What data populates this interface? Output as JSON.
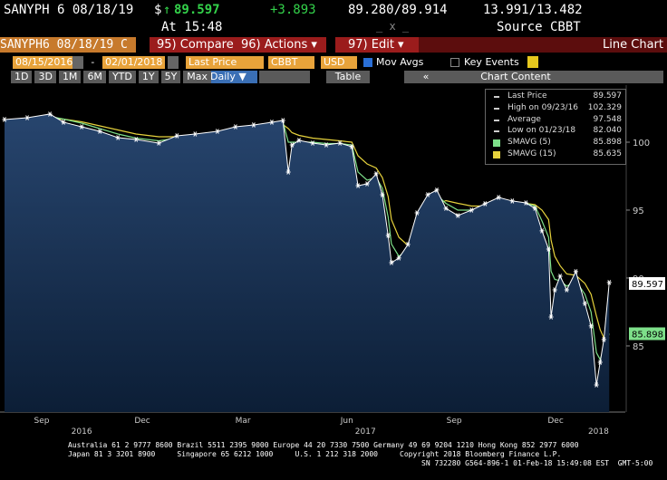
{
  "header": {
    "ticker": "SANYPH 6 08/18/19",
    "currency": "$",
    "arrow": "↑",
    "last": "89.597",
    "change": "+3.893",
    "bid_ask": "89.280/89.914",
    "yields": "13.991/13.482",
    "time": "At 15:48",
    "source": "Source CBBT",
    "window_controls": "_ x _"
  },
  "toolbar": {
    "security": "SANYPH6 08/18/19 C",
    "buttons": [
      "95) Compare",
      "96) Actions ▾",
      "97) Edit ▾"
    ],
    "chart_kind": "Line Chart"
  },
  "settings": {
    "start": "08/15/2016",
    "dash": "-",
    "end": "02/01/2018",
    "field": "Last Price",
    "source": "CBBT",
    "currency": "USD",
    "mov_avgs": "Mov Avgs",
    "key_events": "Key Events"
  },
  "ranges": {
    "buttons": [
      "1D",
      "3D",
      "1M",
      "6M",
      "YTD",
      "1Y",
      "5Y",
      "Max"
    ],
    "period": "Daily ▼",
    "table": "Table",
    "nav": "«",
    "chart_content": "Chart Content"
  },
  "chart_data": {
    "type": "line",
    "x": [
      2016.62,
      2016.675,
      2016.73,
      2016.763,
      2016.807,
      2016.851,
      2016.895,
      2016.939,
      2016.994,
      2017.038,
      2017.082,
      2017.136,
      2017.18,
      2017.224,
      2017.268,
      2017.295,
      2017.308,
      2017.317,
      2017.334,
      2017.367,
      2017.4,
      2017.433,
      2017.462,
      2017.477,
      2017.499,
      2017.521,
      2017.536,
      2017.55,
      2017.558,
      2017.576,
      2017.598,
      2017.62,
      2017.646,
      2017.668,
      2017.69,
      2017.719,
      2017.752,
      2017.785,
      2017.818,
      2017.851,
      2017.884,
      2017.906,
      2017.923,
      2017.939,
      2017.945,
      2017.954,
      2017.967,
      2017.983,
      2018.005,
      2018.027,
      2018.042,
      2018.055,
      2018.064,
      2018.073,
      2018.086
    ],
    "series": [
      {
        "name": "Last Price",
        "color": "#ffffff",
        "legend_value": 89.597,
        "area": true,
        "values": [
          101.67,
          101.8,
          102.07,
          101.47,
          101.13,
          100.8,
          100.33,
          100.2,
          99.93,
          100.47,
          100.6,
          100.8,
          101.13,
          101.27,
          101.47,
          101.6,
          97.8,
          99.8,
          100.13,
          99.93,
          99.8,
          99.93,
          99.67,
          96.8,
          96.93,
          97.67,
          96.13,
          93.13,
          91.13,
          91.47,
          92.47,
          94.8,
          96.13,
          96.47,
          95.13,
          94.6,
          95.0,
          95.47,
          95.93,
          95.67,
          95.53,
          95.13,
          93.47,
          92.13,
          87.13,
          89.13,
          90.13,
          89.13,
          90.47,
          88.13,
          86.47,
          82.13,
          83.8,
          85.47,
          89.67
        ]
      },
      {
        "name": "SMAVG (5)",
        "color": "#7ee08a",
        "legend_value": 85.898,
        "values": [
          101.6,
          101.7,
          101.9,
          101.7,
          101.4,
          101.0,
          100.6,
          100.3,
          100.1,
          100.3,
          100.5,
          100.7,
          101.0,
          101.2,
          101.4,
          101.5,
          100.0,
          100.0,
          100.0,
          100.0,
          99.9,
          99.9,
          99.8,
          97.8,
          97.2,
          97.4,
          96.6,
          94.5,
          92.5,
          91.6,
          92.1,
          93.9,
          95.4,
          96.1,
          95.5,
          95.0,
          95.0,
          95.3,
          95.6,
          95.6,
          95.5,
          95.3,
          94.2,
          93.0,
          90.5,
          89.9,
          89.8,
          89.4,
          89.8,
          88.8,
          87.5,
          84.5,
          84.0,
          84.8,
          85.9
        ]
      },
      {
        "name": "SMAVG (15)",
        "color": "#e6d23c",
        "legend_value": 85.635,
        "values": [
          101.5,
          101.6,
          101.7,
          101.7,
          101.5,
          101.2,
          100.9,
          100.6,
          100.4,
          100.4,
          100.4,
          100.5,
          100.7,
          100.9,
          101.1,
          101.3,
          101.0,
          100.7,
          100.5,
          100.3,
          100.2,
          100.1,
          100.0,
          99.0,
          98.4,
          98.1,
          97.4,
          96.0,
          94.3,
          93.0,
          92.4,
          93.2,
          94.4,
          95.4,
          95.7,
          95.5,
          95.3,
          95.3,
          95.4,
          95.5,
          95.5,
          95.4,
          95.0,
          94.3,
          92.8,
          91.6,
          90.9,
          90.3,
          90.2,
          89.6,
          88.8,
          87.2,
          86.2,
          85.6,
          85.6
        ]
      }
    ],
    "stats": [
      {
        "label": "High on 09/23/16",
        "value": 102.329
      },
      {
        "label": "Average",
        "value": 97.548
      },
      {
        "label": "Low on 01/23/18",
        "value": 82.04,
        "value_label": "82.040"
      }
    ],
    "xlim": [
      2016.609,
      2018.125
    ],
    "ylim": [
      80.13,
      104.2
    ],
    "yticks": [
      85,
      90,
      95,
      100
    ],
    "grid": false,
    "xticks": [
      {
        "value": 2016.71,
        "label": "Sep"
      },
      {
        "value": 2016.954,
        "label": "Dec"
      },
      {
        "value": 2017.198,
        "label": "Mar"
      },
      {
        "value": 2017.45,
        "label": "Jun"
      },
      {
        "value": 2017.71,
        "label": "Sep"
      },
      {
        "value": 2017.956,
        "label": "Dec"
      }
    ],
    "year_labels": [
      {
        "value": 2016.807,
        "label": "2016"
      },
      {
        "value": 2017.495,
        "label": "2017"
      },
      {
        "value": 2018.06,
        "label": "2018"
      }
    ]
  },
  "footer": [
    "Australia 61 2 9777 8600 Brazil 5511 2395 9000 Europe 44 20 7330 7500 Germany 49 69 9204 1210 Hong Kong 852 2977 6000",
    "Japan 81 3 3201 8900     Singapore 65 6212 1000     U.S. 1 212 318 2000     Copyright 2018 Bloomberg Finance L.P.",
    "SN 732280 G564-896-1 01-Feb-18 15:49:08 EST  GMT-5:00"
  ]
}
